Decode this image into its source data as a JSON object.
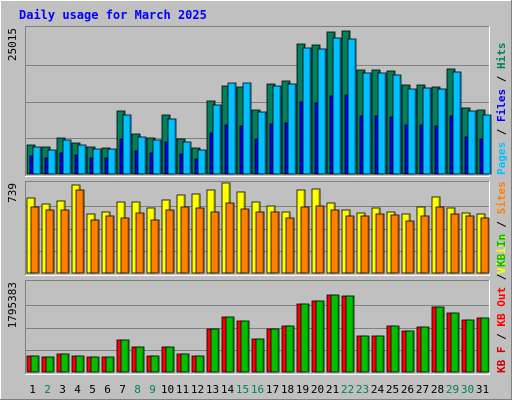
{
  "colors": {
    "background": "#c0c0c0",
    "border": "#808080",
    "title": "#0000ff",
    "grid": "#808080",
    "hits": "#00805c",
    "files": "#0000ff",
    "pages": "#00c0ff",
    "visits": "#ffff00",
    "sites": "#ff8000",
    "kbin": "#00c000",
    "kbout": "#ff0000",
    "kbf": "#cc0000",
    "weekday": "#000000",
    "weekend": "#00805c"
  },
  "chart_data": {
    "type": "bar",
    "title": "Daily usage for March 2025",
    "categories": [
      "1",
      "2",
      "3",
      "4",
      "5",
      "6",
      "7",
      "8",
      "9",
      "10",
      "11",
      "12",
      "13",
      "14",
      "15",
      "16",
      "17",
      "18",
      "19",
      "20",
      "21",
      "22",
      "23",
      "24",
      "25",
      "26",
      "27",
      "28",
      "29",
      "30",
      "31"
    ],
    "weekend_days": [
      "2",
      "8",
      "9",
      "15",
      "16",
      "22",
      "23",
      "29",
      "30"
    ],
    "panels": [
      {
        "id": "hits",
        "max_label": "25015",
        "ymax": 25015,
        "legend": [
          {
            "label": "Pages",
            "color": "pages"
          },
          {
            "label": " / ",
            "color": "weekday"
          },
          {
            "label": "Files",
            "color": "files"
          },
          {
            "label": " / ",
            "color": "weekday"
          },
          {
            "label": "Hits",
            "color": "hits"
          }
        ],
        "series": [
          {
            "name": "Hits",
            "values": [
              5000,
              4600,
              6200,
              5400,
              4600,
              4500,
              10900,
              6900,
              6200,
              10200,
              6000,
              4400,
              12600,
              15200,
              15000,
              11000,
              15500,
              16000,
              22500,
              22300,
              24500,
              24600,
              18000,
              18000,
              17800,
              15300,
              15300,
              15000,
              18100,
              11400,
              11000
            ]
          },
          {
            "name": "Files",
            "values": [
              3100,
              2800,
              3600,
              3200,
              2800,
              2700,
              6000,
              4000,
              3600,
              5600,
              3500,
              2600,
              7000,
              8400,
              8300,
              6100,
              8600,
              8800,
              12400,
              12300,
              13500,
              13600,
              10000,
              10000,
              9800,
              8500,
              8500,
              8300,
              10000,
              6300,
              6100
            ]
          },
          {
            "name": "Pages",
            "values": [
              4700,
              4200,
              5800,
              5000,
              4300,
              4300,
              10200,
              6400,
              5800,
              9500,
              5600,
              4100,
              11900,
              15700,
              15700,
              10700,
              15200,
              15600,
              21800,
              21500,
              23400,
              23300,
              17500,
              17500,
              17000,
              14700,
              14800,
              14700,
              17600,
              10900,
              10200
            ]
          }
        ]
      },
      {
        "id": "visits",
        "max_label": "739",
        "ymax": 739,
        "legend": [
          {
            "label": "Visits",
            "color": "visits"
          },
          {
            "label": " / ",
            "color": "weekday"
          },
          {
            "label": "Sites",
            "color": "sites"
          }
        ],
        "series": [
          {
            "name": "Visits",
            "values": [
              620,
              570,
              600,
              730,
              490,
              510,
              590,
              590,
              540,
              610,
              650,
              660,
              690,
              750,
              670,
              590,
              560,
              510,
              690,
              700,
              580,
              520,
              500,
              540,
              510,
              490,
              550,
              630,
              540,
              500,
              490
            ]
          },
          {
            "name": "Sites",
            "values": [
              550,
              520,
              520,
              690,
              440,
              470,
              460,
              500,
              440,
              520,
              550,
              540,
              510,
              580,
              530,
              510,
              510,
              460,
              550,
              560,
              520,
              470,
              470,
              490,
              480,
              430,
              470,
              550,
              490,
              470,
              460
            ]
          }
        ]
      },
      {
        "id": "kbytes",
        "max_label": "1795383",
        "ymax": 1795383,
        "legend": [
          {
            "label": "KB F",
            "color": "kbf"
          },
          {
            "label": " / ",
            "color": "weekday"
          },
          {
            "label": "KB Out",
            "color": "kbout"
          },
          {
            "label": " / ",
            "color": "weekday"
          },
          {
            "label": "KB In",
            "color": "kbin"
          }
        ],
        "series": [
          {
            "name": "KB Out",
            "values": [
              330000,
              300000,
              360000,
              330000,
              300000,
              300000,
              650000,
              510000,
              330000,
              510000,
              360000,
              330000,
              870000,
              1110000,
              1020000,
              660000,
              870000,
              930000,
              1380000,
              1440000,
              1560000,
              1530000,
              720000,
              720000,
              930000,
              820000,
              900000,
              1320000,
              1200000,
              1050000,
              1090000
            ]
          },
          {
            "name": "KB In",
            "values": [
              330000,
              300000,
              360000,
              330000,
              300000,
              300000,
              650000,
              510000,
              330000,
              510000,
              360000,
              330000,
              870000,
              1110000,
              1020000,
              660000,
              870000,
              930000,
              1380000,
              1440000,
              1560000,
              1530000,
              720000,
              720000,
              930000,
              820000,
              900000,
              1320000,
              1200000,
              1050000,
              1090000
            ]
          }
        ]
      }
    ]
  }
}
